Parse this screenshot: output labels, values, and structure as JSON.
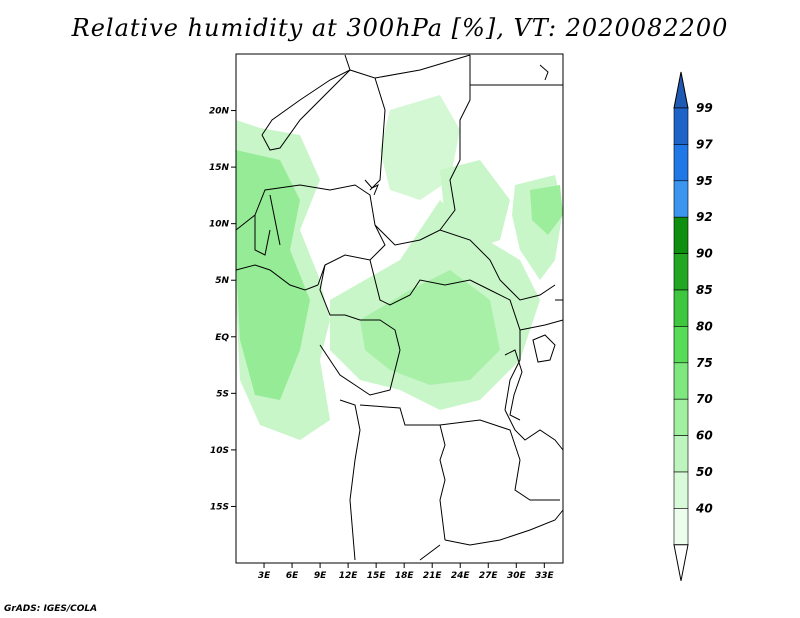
{
  "title": "Relative humidity at 300hPa [%], VT: 2020082200",
  "credit": "GrADS: IGES/COLA",
  "map": {
    "lat_labels": [
      "20N",
      "15N",
      "10N",
      "5N",
      "EQ",
      "5S",
      "10S",
      "15S"
    ],
    "lat_values": [
      20,
      15,
      10,
      5,
      0,
      -5,
      -10,
      -15
    ],
    "lon_labels": [
      "3E",
      "6E",
      "9E",
      "12E",
      "15E",
      "18E",
      "21E",
      "24E",
      "27E",
      "30E",
      "33E"
    ],
    "lon_values": [
      3,
      6,
      9,
      12,
      15,
      18,
      21,
      24,
      27,
      30,
      33
    ],
    "lon_range": [
      0,
      35
    ],
    "lat_range": [
      -20,
      25
    ]
  },
  "colorbar": {
    "labels": [
      "99",
      "97",
      "95",
      "92",
      "90",
      "85",
      "80",
      "75",
      "70",
      "60",
      "50",
      "40"
    ],
    "colors": [
      "#1e64c8",
      "#1f78e6",
      "#3c96f0",
      "#0f8f0f",
      "#23a723",
      "#3fc63f",
      "#58dc58",
      "#7ee87e",
      "#a0f0a0",
      "#bef5be",
      "#d8fad8",
      "#edfded"
    ],
    "top_arrow_color": "#1e5ab4",
    "bottom_arrow_color": "#ffffff"
  }
}
